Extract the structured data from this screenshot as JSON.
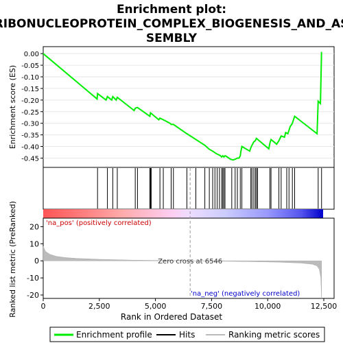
{
  "chart_data": {
    "type": "line",
    "title_line1": "Enrichment plot:",
    "title_line2": "RIBONUCLEOPROTEIN_COMPLEX_BIOGENESIS_AND_AS",
    "title_line3": "SEMBLY",
    "top_panel": {
      "ylabel": "Enrichment score (ES)",
      "ylim": [
        -0.49,
        0.03
      ],
      "yticks": [
        "0.00",
        "-0.05",
        "-0.10",
        "-0.15",
        "-0.20",
        "-0.25",
        "-0.30",
        "-0.35",
        "-0.40",
        "-0.45"
      ],
      "ytick_values": [
        0.0,
        -0.05,
        -0.1,
        -0.15,
        -0.2,
        -0.25,
        -0.3,
        -0.35,
        -0.4,
        -0.45
      ],
      "series": [
        {
          "name": "Enrichment profile",
          "color": "#00ee00",
          "x": [
            0,
            2400,
            2420,
            2800,
            2860,
            3050,
            3100,
            3250,
            3300,
            4050,
            4100,
            4200,
            4750,
            4780,
            5150,
            5200,
            5350,
            5650,
            5700,
            5800,
            6400,
            7200,
            7400,
            7550,
            7700,
            7800,
            7900,
            7950,
            8000,
            8050,
            8100,
            8150,
            8350,
            8450,
            8550,
            8650,
            8720,
            8780,
            8800,
            8850,
            9200,
            9250,
            9300,
            9380,
            9450,
            9500,
            10050,
            10100,
            10150,
            10400,
            10500,
            10600,
            10750,
            10800,
            10900,
            11000,
            11100,
            11200,
            12200,
            12250,
            12350,
            12400,
            12420
          ],
          "y": [
            0.0,
            -0.195,
            -0.172,
            -0.2,
            -0.185,
            -0.2,
            -0.185,
            -0.2,
            -0.188,
            -0.245,
            -0.235,
            -0.232,
            -0.27,
            -0.255,
            -0.285,
            -0.278,
            -0.285,
            -0.3,
            -0.305,
            -0.305,
            -0.345,
            -0.395,
            -0.412,
            -0.42,
            -0.43,
            -0.435,
            -0.44,
            -0.445,
            -0.44,
            -0.445,
            -0.44,
            -0.442,
            -0.455,
            -0.458,
            -0.455,
            -0.45,
            -0.45,
            -0.44,
            -0.425,
            -0.4,
            -0.42,
            -0.405,
            -0.395,
            -0.38,
            -0.375,
            -0.365,
            -0.41,
            -0.385,
            -0.37,
            -0.39,
            -0.375,
            -0.355,
            -0.36,
            -0.34,
            -0.345,
            -0.315,
            -0.3,
            -0.27,
            -0.345,
            -0.205,
            -0.215,
            0.005,
            0.005
          ]
        }
      ]
    },
    "hits_panel": {
      "series_name": "Hits",
      "x": [
        2420,
        2860,
        3100,
        3300,
        4100,
        4200,
        4750,
        4780,
        4810,
        5200,
        5350,
        5700,
        5800,
        6400,
        6800,
        7200,
        7400,
        7550,
        7650,
        7750,
        7850,
        7950,
        8000,
        8050,
        8100,
        8400,
        8550,
        8650,
        8780,
        8850,
        9250,
        9300,
        9380,
        9450,
        9500,
        9550,
        10100,
        10150,
        10500,
        10600,
        10850,
        10950,
        11100,
        11200,
        12250,
        12400
      ]
    },
    "bottom_panel": {
      "ylabel": "Ranked list metric (PreRanked)",
      "xlabel": "Rank in Ordered Dataset",
      "xlim": [
        0,
        12500
      ],
      "ylim": [
        -22,
        25
      ],
      "yticks": [
        "20",
        "10",
        "0",
        "-10",
        "-20"
      ],
      "ytick_values": [
        20,
        10,
        0,
        -10,
        -20
      ],
      "xticks": [
        "0",
        "2,500",
        "5,000",
        "7,500",
        "10,000",
        "12,500"
      ],
      "xtick_values": [
        0,
        2500,
        5000,
        7500,
        10000,
        12500
      ],
      "series_name": "Ranking metric scores",
      "metric_curve": {
        "x": [
          0,
          100,
          300,
          600,
          1000,
          1500,
          2500,
          4000,
          6546,
          9000,
          10500,
          11500,
          12000,
          12200,
          12300,
          12370,
          12400
        ],
        "y": [
          8.5,
          5.5,
          3.8,
          2.6,
          1.9,
          1.4,
          0.9,
          0.4,
          0.0,
          -0.4,
          -0.8,
          -1.3,
          -2.0,
          -3.0,
          -5.0,
          -10.0,
          -22.0
        ]
      },
      "zero_cross_label": "Zero cross at 6546",
      "zero_cross": 6546,
      "pos_label": "'na_pos' (positively correlated)",
      "neg_label": "'na_neg' (negatively correlated)"
    },
    "legend": [
      {
        "name": "Enrichment profile",
        "color": "#00ee00"
      },
      {
        "name": "Hits",
        "color": "#000000"
      },
      {
        "name": "Ranking metric scores",
        "color": "#bbbbbb"
      }
    ],
    "colors": {
      "profile": "#00ee00",
      "pos": "#ff0000",
      "neg": "#0000ff",
      "metric_fill": "#bbbbbb",
      "axis": "#000000"
    }
  }
}
